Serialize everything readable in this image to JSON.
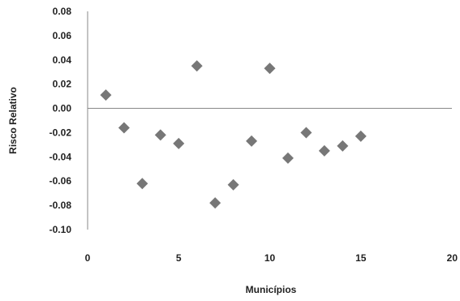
{
  "chart_data": {
    "type": "scatter",
    "xlabel": "Municípios",
    "ylabel": "Risco Relativo",
    "xlim": [
      0,
      20
    ],
    "ylim": [
      -0.1,
      0.08
    ],
    "x_ticks": [
      "0",
      "5",
      "10",
      "15",
      "20"
    ],
    "y_ticks": [
      "0.08",
      "0.06",
      "0.04",
      "0.02",
      "0.00",
      "-0.02",
      "-0.04",
      "-0.06",
      "-0.08",
      "-0.10"
    ],
    "grid": false,
    "legend": "none",
    "marker": "diamond",
    "marker_color": "#777777",
    "series": [
      {
        "x": [
          1,
          2,
          3,
          4,
          5,
          6,
          7,
          8,
          9,
          10,
          11,
          12,
          13,
          14,
          15
        ],
        "y": [
          0.011,
          -0.016,
          -0.062,
          -0.022,
          -0.029,
          0.035,
          -0.078,
          -0.063,
          -0.027,
          0.033,
          -0.041,
          -0.02,
          -0.035,
          -0.031,
          -0.023
        ]
      }
    ]
  }
}
